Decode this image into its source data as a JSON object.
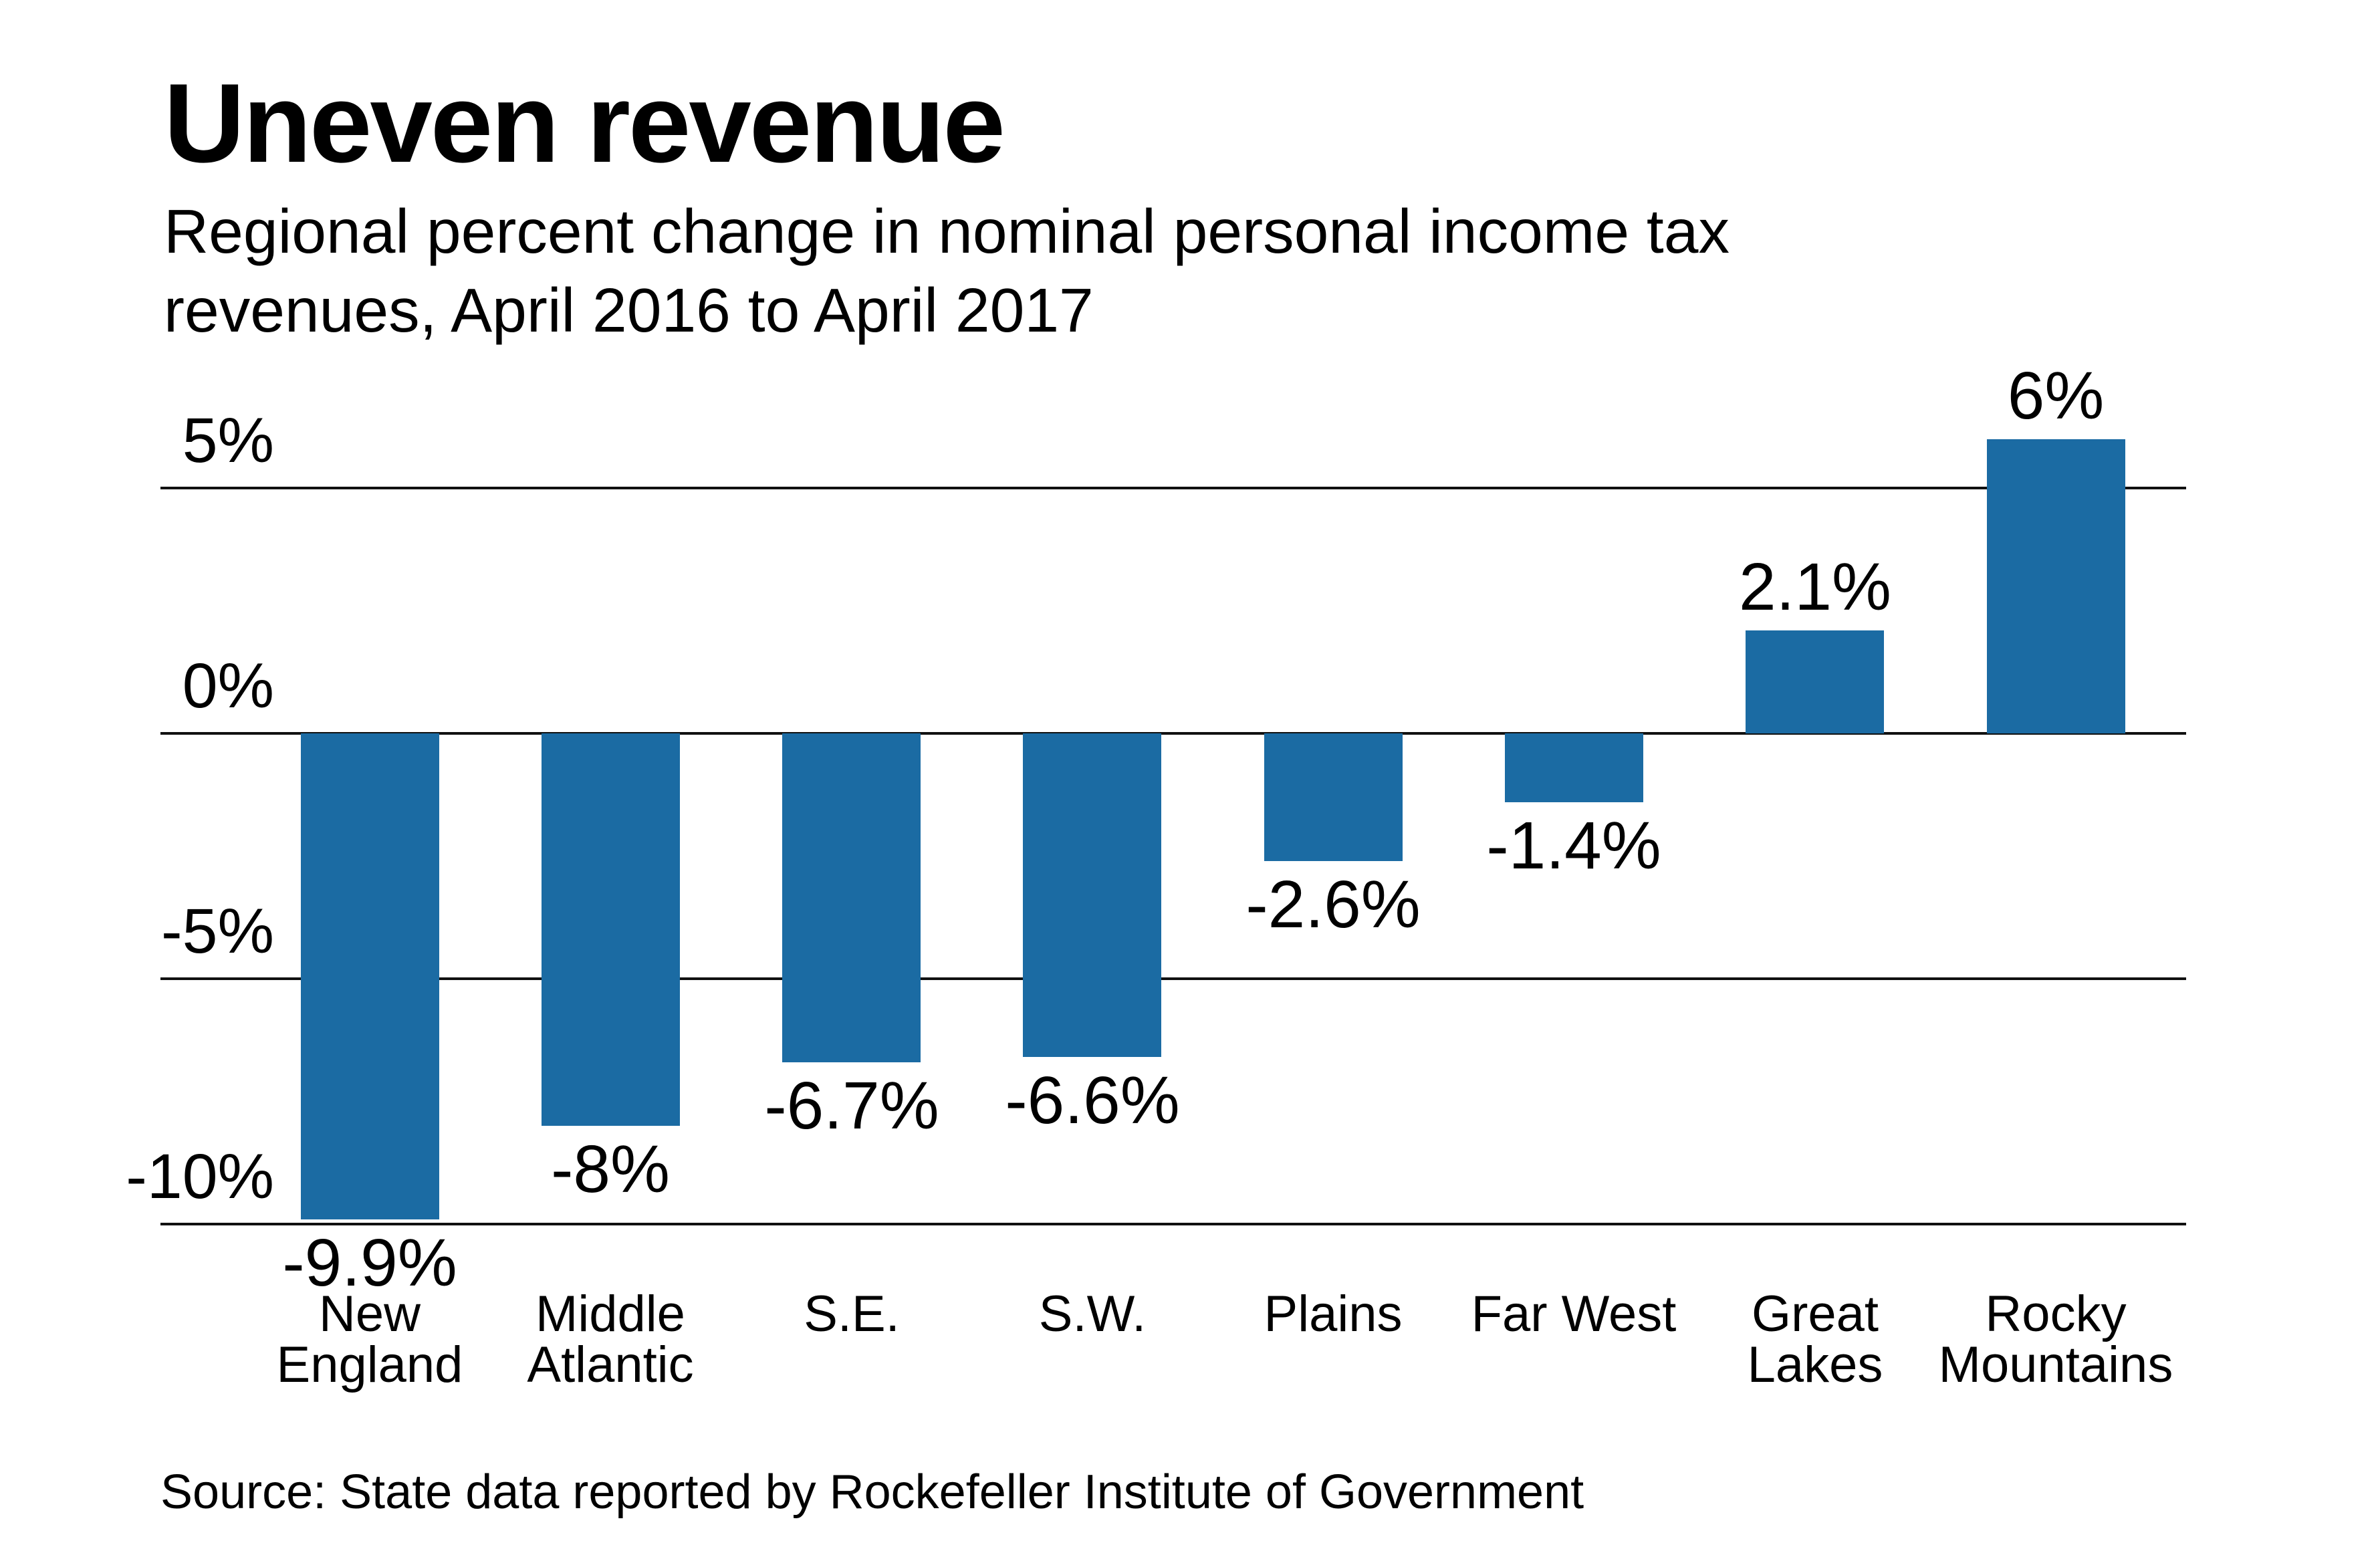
{
  "header": {
    "title": "Uneven revenue",
    "subtitle_line1": "Regional percent change in nominal personal income tax",
    "subtitle_line2": "revenues, April 2016 to April 2017"
  },
  "footer": {
    "source": "Source: State data reported by Rockefeller Institute of Government"
  },
  "colors": {
    "bar": "#1b6ba3",
    "grid": "#111111",
    "text": "#000000",
    "background": "#ffffff"
  },
  "chart_data": {
    "type": "bar",
    "title": "Uneven revenue",
    "subtitle": "Regional percent change in nominal personal income tax revenues, April 2016 to April 2017",
    "categories": [
      "New England",
      "Middle Atlantic",
      "S.E.",
      "S.W.",
      "Plains",
      "Far West",
      "Great Lakes",
      "Rocky Mountains"
    ],
    "category_label_lines": [
      [
        "New",
        "England"
      ],
      [
        "Middle",
        "Atlantic"
      ],
      [
        "S.E."
      ],
      [
        "S.W."
      ],
      [
        "Plains"
      ],
      [
        "Far West"
      ],
      [
        "Great",
        "Lakes"
      ],
      [
        "Rocky",
        "Mountains"
      ]
    ],
    "values": [
      -9.9,
      -8,
      -6.7,
      -6.6,
      -2.6,
      -1.4,
      2.1,
      6
    ],
    "value_labels": [
      "-9.9%",
      "-8%",
      "-6.7%",
      "-6.6%",
      "-2.6%",
      "-1.4%",
      "2.1%",
      "6%"
    ],
    "unit": "%",
    "y_ticks": [
      {
        "label": "5%",
        "value": 5
      },
      {
        "label": "0%",
        "value": 0
      },
      {
        "label": "-5%",
        "value": -5
      },
      {
        "label": "-10%",
        "value": -10
      }
    ],
    "ylim": [
      -10.3,
      6.3
    ],
    "grid": "horizontal",
    "legend": "none",
    "xlabel": "",
    "ylabel": "",
    "source": "Source: State data reported by Rockefeller Institute of Government"
  }
}
